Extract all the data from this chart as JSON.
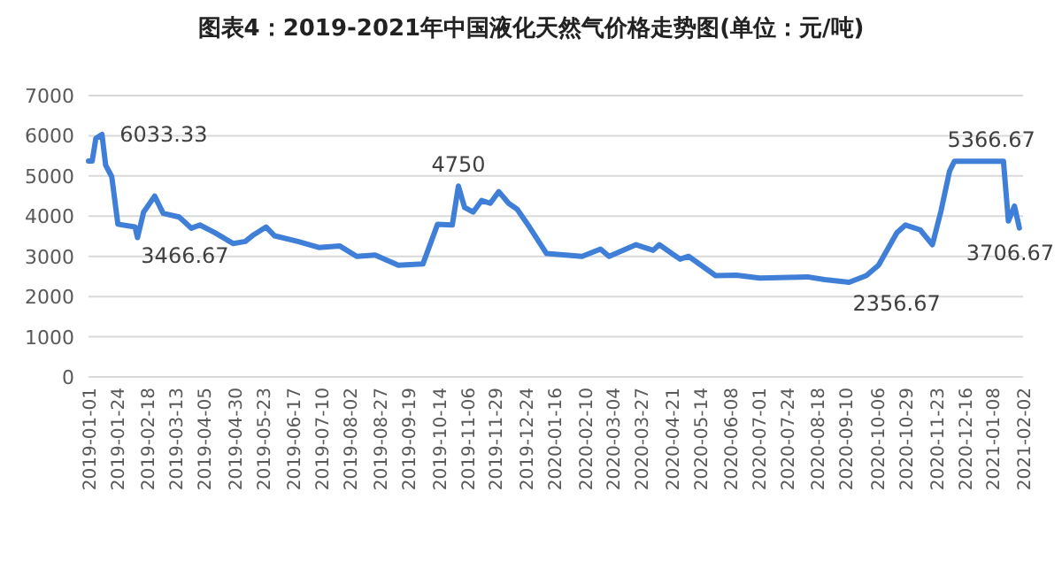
{
  "chart_data": {
    "type": "line",
    "title": "图表4：2019-2021年中国液化天然气价格走势图(单位：元/吨)",
    "x": [
      "2019-01-01",
      "2019-01-04",
      "2019-01-07",
      "2019-01-12",
      "2019-01-15",
      "2019-01-20",
      "2019-01-25",
      "2019-02-08",
      "2019-02-10",
      "2019-02-15",
      "2019-02-24",
      "2019-03-03",
      "2019-03-16",
      "2019-03-26",
      "2019-04-02",
      "2019-04-14",
      "2019-04-29",
      "2019-05-09",
      "2019-05-16",
      "2019-05-26",
      "2019-06-02",
      "2019-06-21",
      "2019-07-08",
      "2019-07-25",
      "2019-08-08",
      "2019-08-23",
      "2019-09-11",
      "2019-10-01",
      "2019-10-13",
      "2019-10-25",
      "2019-10-30",
      "2019-11-04",
      "2019-11-11",
      "2019-11-18",
      "2019-11-25",
      "2019-12-02",
      "2019-12-10",
      "2019-12-17",
      "2019-12-27",
      "2020-01-10",
      "2020-02-08",
      "2020-02-23",
      "2020-03-01",
      "2020-03-23",
      "2020-04-06",
      "2020-04-11",
      "2020-04-28",
      "2020-05-05",
      "2020-05-27",
      "2020-06-13",
      "2020-07-02",
      "2020-08-10",
      "2020-08-24",
      "2020-09-13",
      "2020-09-27",
      "2020-10-07",
      "2020-10-22",
      "2020-10-29",
      "2020-11-10",
      "2020-11-20",
      "2020-11-27",
      "2020-12-04",
      "2020-12-08",
      "2021-01-17",
      "2021-01-21",
      "2021-01-26",
      "2021-01-30"
    ],
    "series": [
      {
        "color": "#3f7fd8",
        "values": [
          5370,
          5370,
          5930,
          6033.33,
          5270,
          4980,
          3800,
          3730,
          3466.67,
          4100,
          4500,
          4070,
          3980,
          3700,
          3780,
          3590,
          3320,
          3370,
          3540,
          3730,
          3510,
          3370,
          3220,
          3260,
          3000,
          3030,
          2780,
          2810,
          3800,
          3780,
          4750,
          4220,
          4100,
          4390,
          4320,
          4610,
          4320,
          4170,
          3730,
          3070,
          3000,
          3180,
          3000,
          3290,
          3150,
          3290,
          2930,
          3000,
          2520,
          2530,
          2460,
          2490,
          2420,
          2356.67,
          2520,
          2780,
          3590,
          3780,
          3660,
          3290,
          4130,
          5120,
          5366.67,
          5366.67,
          3880,
          4250,
          3706.67
        ]
      }
    ],
    "xlim": [
      "2019-01-01",
      "2021-02-02"
    ],
    "xticks": [
      "2019-01-01",
      "2019-01-24",
      "2019-02-18",
      "2019-03-13",
      "2019-04-05",
      "2019-04-30",
      "2019-05-23",
      "2019-06-17",
      "2019-07-10",
      "2019-08-02",
      "2019-08-27",
      "2019-09-19",
      "2019-10-14",
      "2019-11-06",
      "2019-11-29",
      "2019-12-24",
      "2020-01-16",
      "2020-02-10",
      "2020-03-04",
      "2020-03-27",
      "2020-04-21",
      "2020-05-14",
      "2020-06-08",
      "2020-07-01",
      "2020-07-24",
      "2020-08-18",
      "2020-09-10",
      "2020-10-06",
      "2020-10-29",
      "2020-11-23",
      "2020-12-16",
      "2021-01-08",
      "2021-02-02"
    ],
    "ylim": [
      0,
      7000
    ],
    "yticks": [
      0,
      1000,
      2000,
      3000,
      4000,
      5000,
      6000,
      7000
    ],
    "grid": "y",
    "annotations": [
      {
        "text": "6033.33",
        "x": "2019-01-12",
        "y": 6033.33
      },
      {
        "text": "3466.67",
        "x": "2019-02-10",
        "y": 3466.67
      },
      {
        "text": "4750",
        "x": "2019-10-30",
        "y": 4750
      },
      {
        "text": "2356.67",
        "x": "2020-09-13",
        "y": 2356.67
      },
      {
        "text": "5366.67",
        "x": "2020-12-08",
        "y": 5366.67
      },
      {
        "text": "3706.67",
        "x": "2021-01-30",
        "y": 3706.67
      }
    ]
  }
}
